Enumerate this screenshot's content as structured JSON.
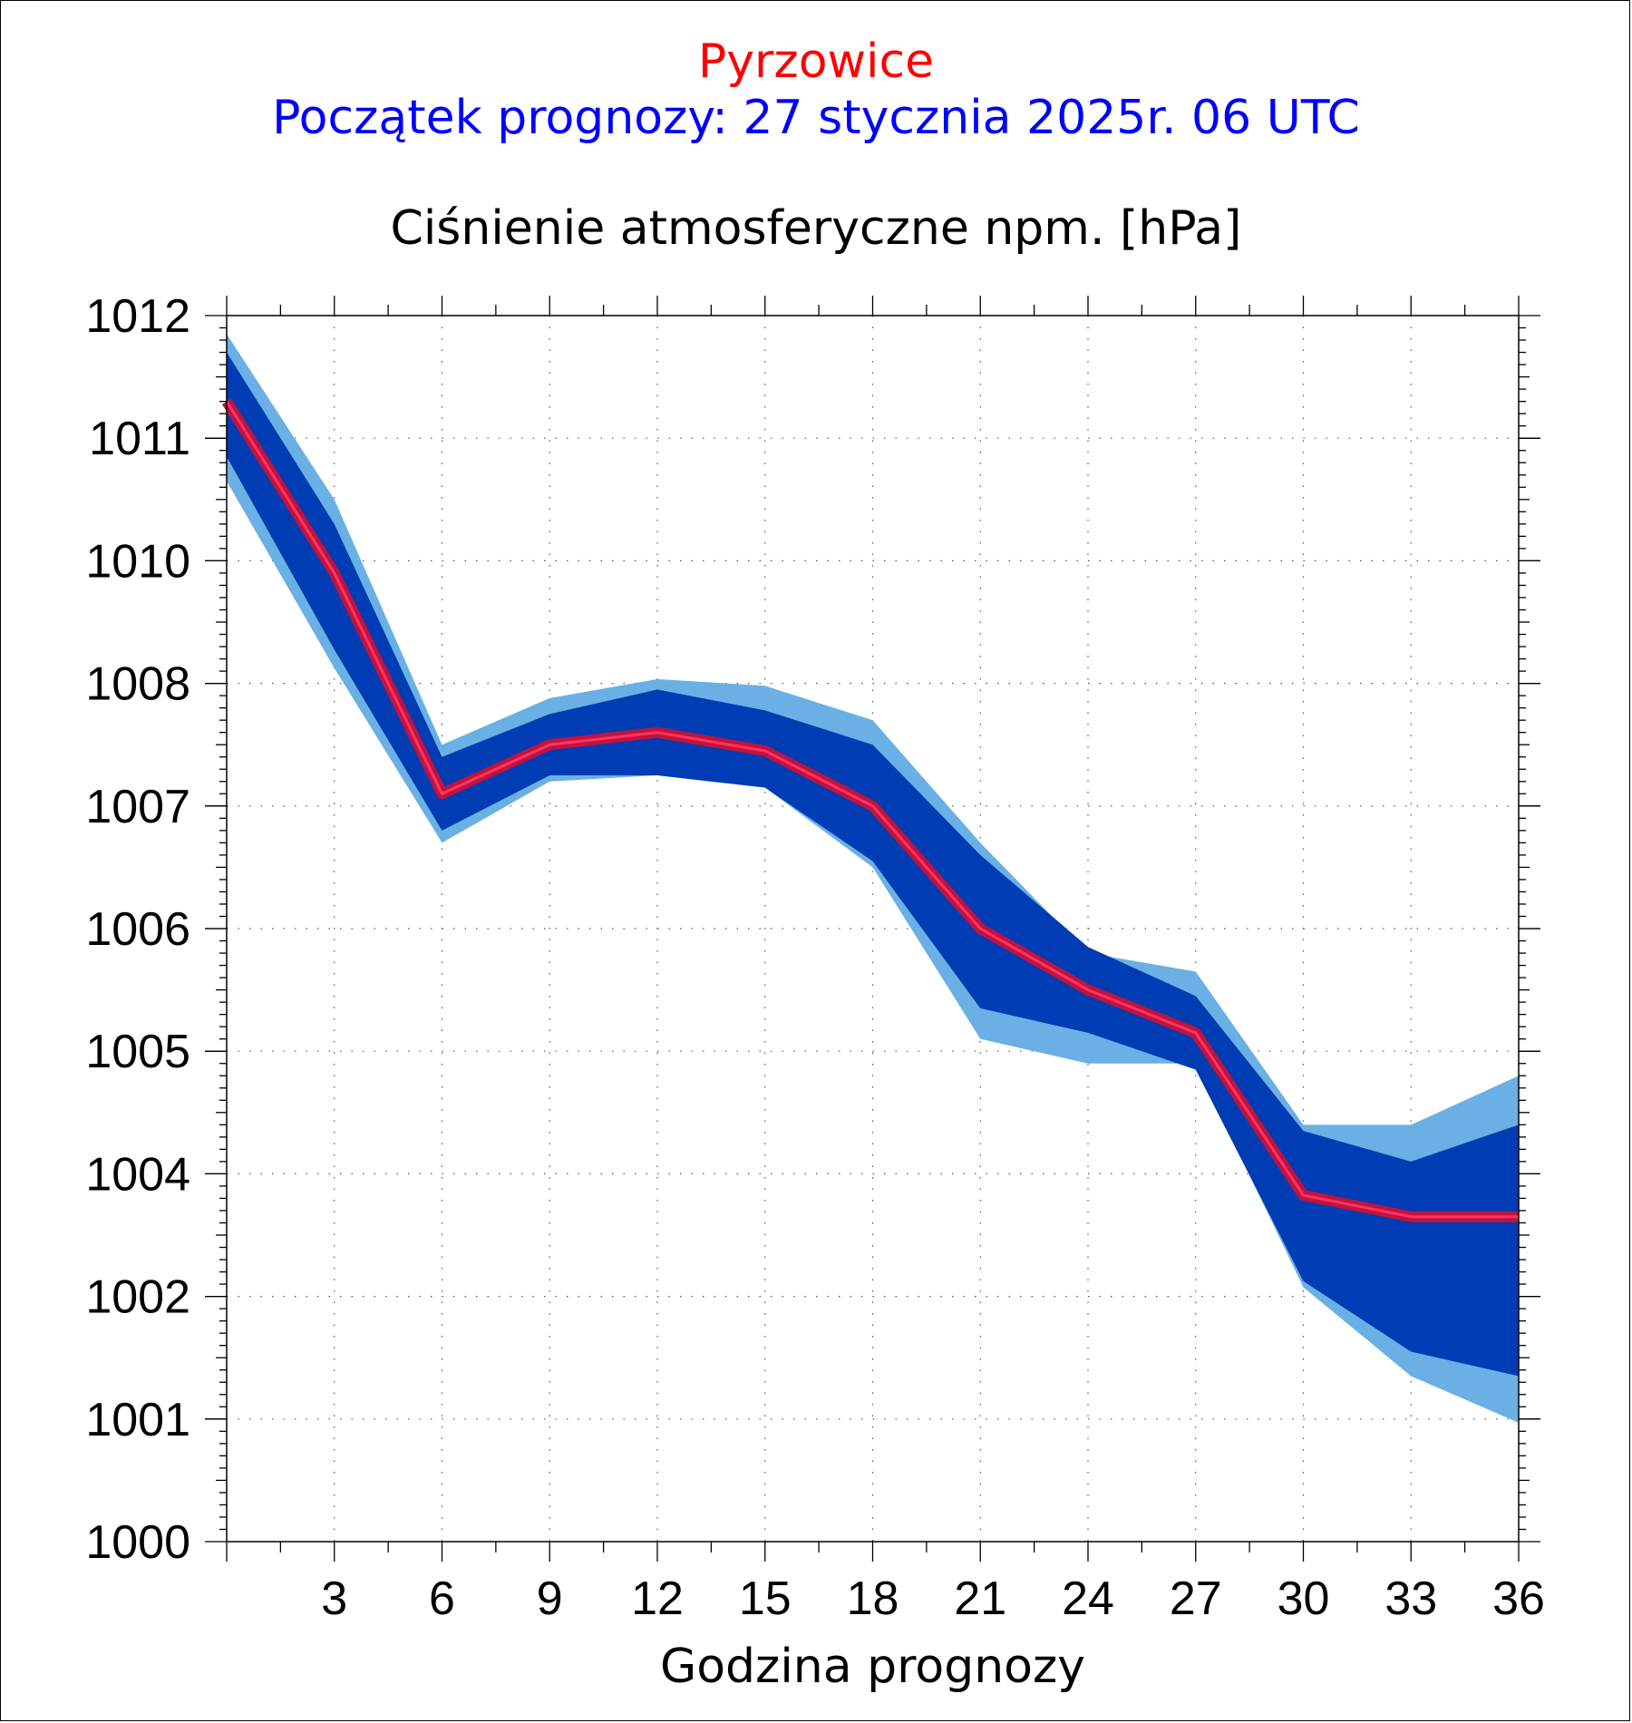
{
  "station": "Pyrzowice",
  "forecast_start": "Początek prognozy: 27 stycznia 2025r. 06 UTC",
  "chart_data": {
    "type": "area",
    "title": "Ciśnienie atmosferyczne npm. [hPa]",
    "xlabel": "Godzina prognozy",
    "ylabel": "",
    "xlim": [
      0,
      36
    ],
    "y_tick_labels": [
      "1000",
      "1001",
      "1002",
      "1004",
      "1005",
      "1006",
      "1007",
      "1008",
      "1010",
      "1011",
      "1012"
    ],
    "x_ticks": [
      3,
      6,
      9,
      12,
      15,
      18,
      21,
      24,
      27,
      30,
      33,
      36
    ],
    "x": [
      0,
      3,
      6,
      9,
      12,
      15,
      18,
      21,
      24,
      27,
      30,
      33,
      36
    ],
    "series": [
      {
        "outer_upper": [
          1011.85,
          1010.5,
          1007.5,
          1007.88,
          1008.07,
          1007.98,
          1007.7,
          1006.7,
          1005.8,
          1005.65,
          1004.4,
          1004.4,
          1004.8
        ]
      },
      {
        "inner_upper": [
          1011.7,
          1010.3,
          1007.4,
          1007.75,
          1007.95,
          1007.78,
          1007.5,
          1006.6,
          1005.85,
          1005.45,
          1004.35,
          1004.1,
          1004.4
        ]
      },
      {
        "median": [
          1011.3,
          1009.8,
          1007.1,
          1007.5,
          1007.6,
          1007.45,
          1007.0,
          1006.0,
          1005.5,
          1005.15,
          1003.65,
          1003.3,
          1003.3
        ]
      },
      {
        "inner_lower": [
          1010.85,
          1008.55,
          1006.8,
          1007.25,
          1007.25,
          1007.15,
          1006.55,
          1005.35,
          1005.15,
          1004.85,
          1002.25,
          1001.55,
          1001.35
        ]
      },
      {
        "outer_lower": [
          1010.65,
          1008.25,
          1006.7,
          1007.2,
          1007.25,
          1007.15,
          1006.5,
          1005.1,
          1004.9,
          1004.9,
          1002.15,
          1001.35,
          1000.97
        ]
      }
    ],
    "grid": true,
    "colors": {
      "outer_band": "#6ab0e4",
      "inner_band": "#003cb4",
      "median_line": "#c0143c",
      "median_core": "#ff3264"
    }
  }
}
